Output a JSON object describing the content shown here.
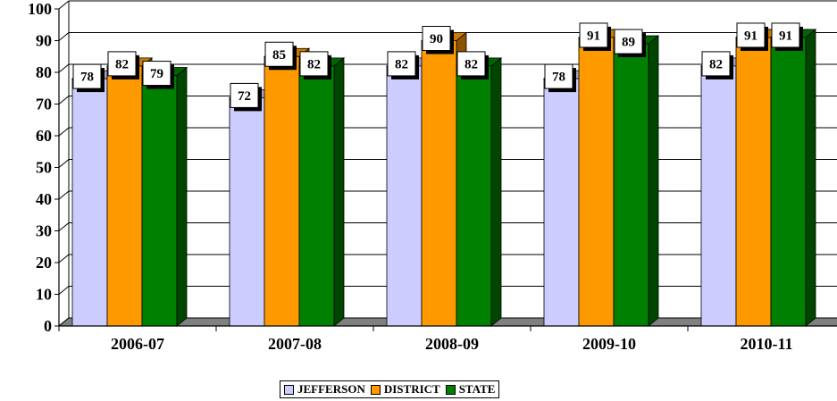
{
  "chart_data": {
    "type": "bar",
    "categories": [
      "2006-07",
      "2007-08",
      "2008-09",
      "2009-10",
      "2010-11"
    ],
    "series": [
      {
        "name": "JEFFERSON",
        "values": [
          78,
          72,
          82,
          78,
          82
        ],
        "color": "#CCCCFF"
      },
      {
        "name": "DISTRICT",
        "values": [
          82,
          85,
          90,
          91,
          91
        ],
        "color": "#FF9900"
      },
      {
        "name": "STATE",
        "values": [
          79,
          82,
          82,
          89,
          91
        ],
        "color": "#008000"
      }
    ],
    "ylim": [
      0,
      100
    ],
    "yticks": [
      0,
      10,
      20,
      30,
      40,
      50,
      60,
      70,
      80,
      90,
      100
    ],
    "grid": true,
    "legend_position": "bottom",
    "title": "",
    "xlabel": "",
    "ylabel": ""
  }
}
